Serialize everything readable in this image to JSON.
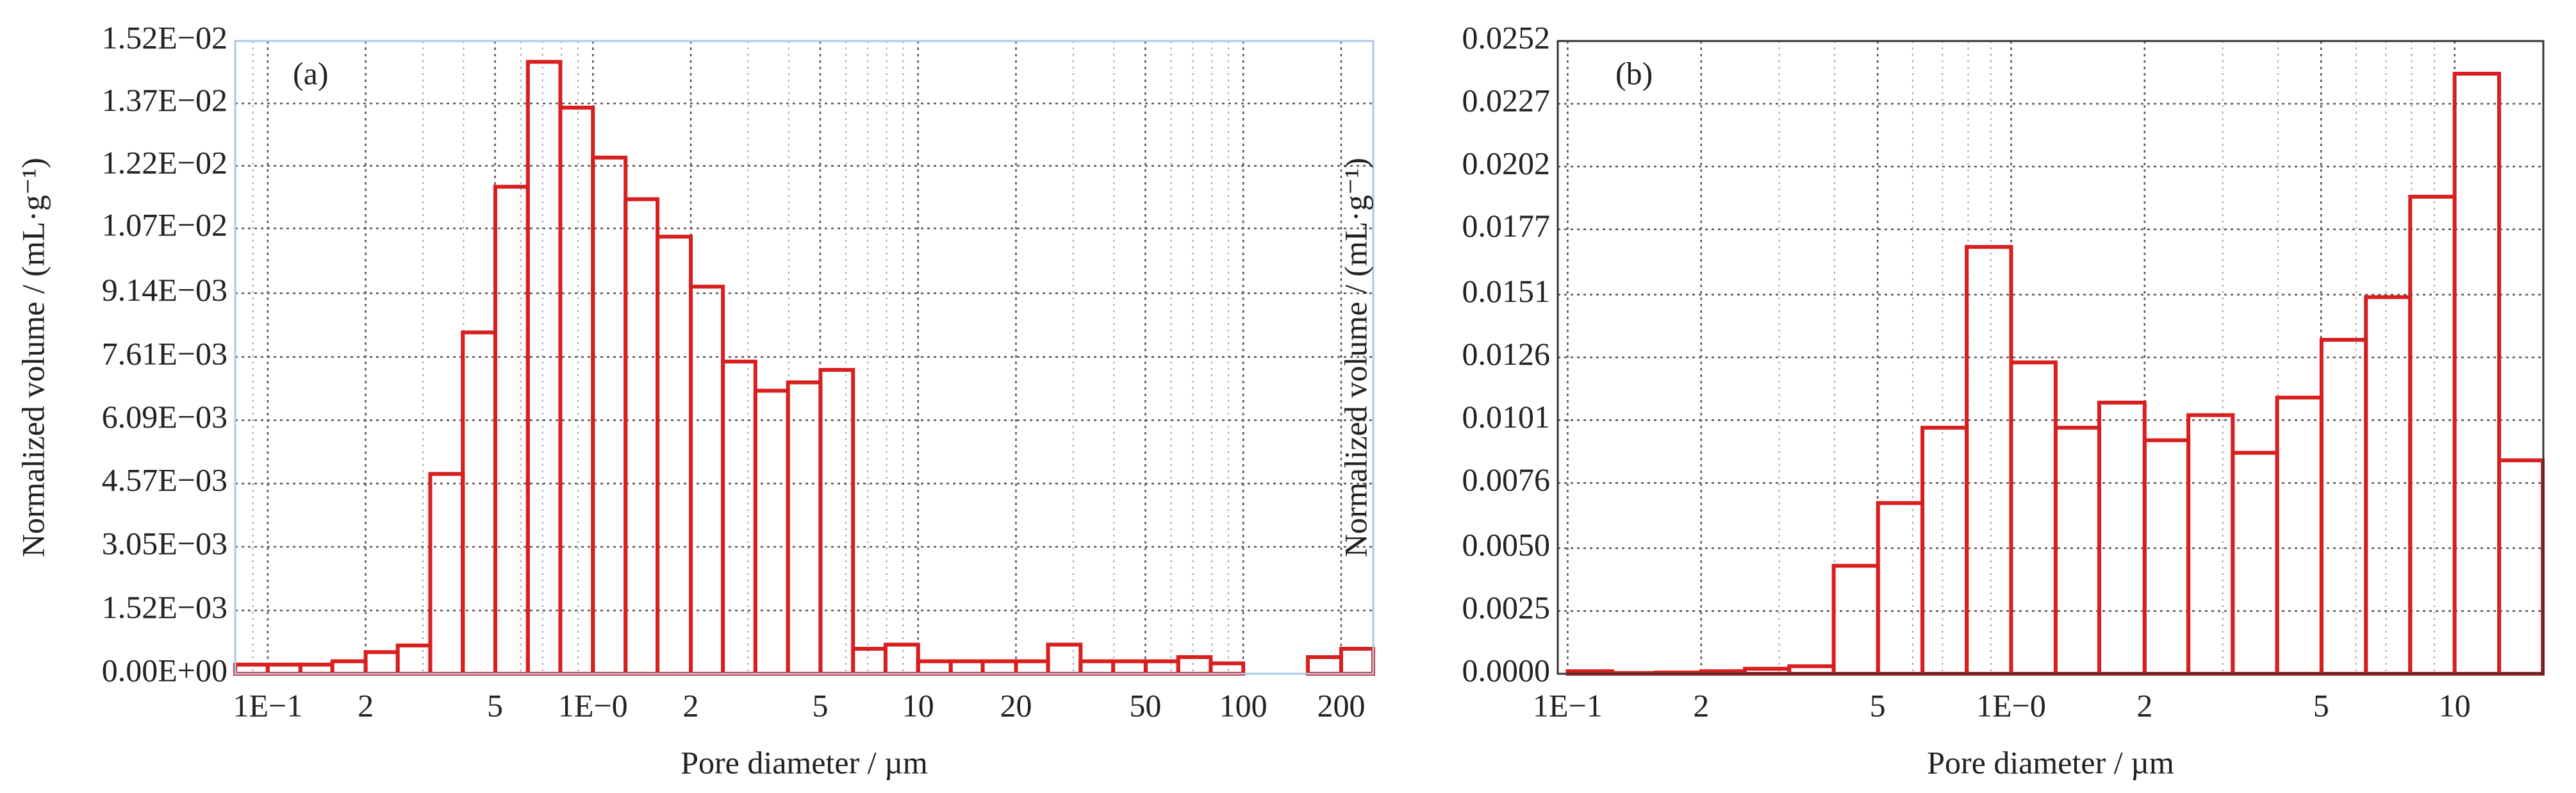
{
  "chart_data": [
    {
      "type": "histogram",
      "panel_label": "(a)",
      "xlabel": "Pore diameter / µm",
      "ylabel": "Normalized volume / (mL·g⁻¹)",
      "x_log": true,
      "grid": true,
      "color": "#d81e1e",
      "bins": [
        0.0794,
        0.1,
        0.126,
        0.158,
        0.2,
        0.251,
        0.316,
        0.398,
        0.501,
        0.631,
        0.794,
        1,
        1.26,
        1.58,
        2,
        2.51,
        3.16,
        3.98,
        5.01,
        6.31,
        7.94,
        10,
        12.6,
        15.8,
        20,
        25.1,
        31.6,
        39.8,
        50.1,
        63.1,
        79.4,
        100,
        126,
        158,
        200,
        251
      ],
      "values": [
        0.00022,
        0.00022,
        0.00022,
        0.0003,
        0.00052,
        0.00068,
        0.0048,
        0.0082,
        0.0117,
        0.0147,
        0.0136,
        0.0124,
        0.0114,
        0.0105,
        0.0093,
        0.0075,
        0.0068,
        0.007,
        0.0073,
        0.0006,
        0.0007,
        0.0003,
        0.0003,
        0.0003,
        0.0003,
        0.0007,
        0.0003,
        0.0003,
        0.0003,
        0.0004,
        0.00025,
        0,
        0,
        0.0004,
        0.0006
      ],
      "xlim": [
        0.0794,
        251
      ],
      "xticks": [
        {
          "value": 0.1,
          "label": "1E−1"
        },
        {
          "value": 0.2,
          "label": "2"
        },
        {
          "value": 0.5,
          "label": "5"
        },
        {
          "value": 1,
          "label": "1E−0"
        },
        {
          "value": 2,
          "label": "2"
        },
        {
          "value": 5,
          "label": "5"
        },
        10,
        20,
        50,
        100,
        200
      ],
      "xminorticks": [
        0.09,
        0.3,
        0.4,
        0.6,
        0.7,
        0.8,
        0.9,
        3,
        4,
        6,
        7,
        8,
        9,
        30,
        40,
        60,
        70,
        80,
        90
      ],
      "ylim": [
        0,
        0.0152
      ],
      "yticks": [
        {
          "value": 0,
          "label": "0.00E+00"
        },
        {
          "value": 0.00152,
          "label": "1.52E−03"
        },
        {
          "value": 0.00305,
          "label": "3.05E−03"
        },
        {
          "value": 0.00457,
          "label": "4.57E−03"
        },
        {
          "value": 0.00609,
          "label": "6.09E−03"
        },
        {
          "value": 0.00761,
          "label": "7.61E−03"
        },
        {
          "value": 0.00914,
          "label": "9.14E−03"
        },
        {
          "value": 0.0107,
          "label": "1.07E−02"
        },
        {
          "value": 0.0122,
          "label": "1.22E−02"
        },
        {
          "value": 0.0137,
          "label": "1.37E−02"
        },
        {
          "value": 0.0152,
          "label": "1.52E−02"
        }
      ]
    },
    {
      "type": "histogram",
      "panel_label": "(b)",
      "xlabel": "Pore diameter / µm",
      "ylabel": "Normalized volume / (mL·g⁻¹)",
      "x_log": true,
      "grid": true,
      "color": "#d81e1e",
      "bins": [
        0.1,
        0.126,
        0.158,
        0.2,
        0.251,
        0.316,
        0.398,
        0.501,
        0.631,
        0.794,
        1,
        1.26,
        1.58,
        2,
        2.51,
        3.16,
        3.98,
        5.01,
        6.31,
        7.94,
        10,
        12.6,
        15.8
      ],
      "values": [
        0.0001,
        3e-05,
        5e-05,
        0.0001,
        0.0002,
        0.0003,
        0.0043,
        0.0068,
        0.0098,
        0.017,
        0.0124,
        0.0098,
        0.0108,
        0.0093,
        0.0103,
        0.0088,
        0.011,
        0.0133,
        0.015,
        0.019,
        0.0239,
        0.0085
      ],
      "xlim": [
        0.095,
        15.85
      ],
      "xticks": [
        {
          "value": 0.1,
          "label": "1E−1"
        },
        {
          "value": 0.2,
          "label": "2"
        },
        {
          "value": 0.5,
          "label": "5"
        },
        {
          "value": 1,
          "label": "1E−0"
        },
        {
          "value": 2,
          "label": "2"
        },
        {
          "value": 5,
          "label": "5"
        },
        10
      ],
      "xminorticks": [
        0.3,
        0.4,
        0.6,
        0.7,
        0.8,
        0.9,
        3,
        4,
        6,
        7,
        8,
        9
      ],
      "ylim": [
        0,
        0.0252
      ],
      "yticks": [
        {
          "value": 0,
          "label": "0.0000"
        },
        0.0025,
        {
          "value": 0.005,
          "label": "0.0050"
        },
        0.0076,
        0.0101,
        0.0126,
        0.0151,
        0.0177,
        0.0202,
        0.0227,
        0.0252
      ]
    }
  ]
}
